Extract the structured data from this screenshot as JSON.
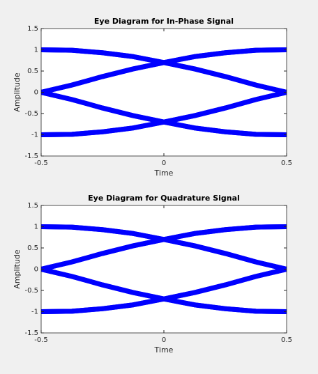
{
  "chart_data": [
    {
      "type": "line",
      "title": "Eye Diagram for In-Phase Signal",
      "x_label": "Time",
      "y_label": "Amplitude",
      "xlim": [
        -0.5,
        0.5
      ],
      "ylim": [
        -1.5,
        1.5
      ],
      "xticks": [
        -0.5,
        0,
        0.5
      ],
      "yticks": [
        -1.5,
        -1,
        -0.5,
        0,
        0.5,
        1,
        1.5
      ],
      "grid": false,
      "x": [
        -0.5,
        -0.375,
        -0.25,
        -0.125,
        0,
        0.125,
        0.25,
        0.375,
        0.5
      ],
      "series": [
        {
          "color": "#0000ff",
          "values": [
            1,
            0.99,
            0.93,
            0.84,
            0.7,
            0.84,
            0.93,
            0.99,
            1
          ]
        },
        {
          "color": "#0000ff",
          "values": [
            1,
            0.99,
            0.93,
            0.84,
            0.7,
            0.55,
            0.37,
            0.17,
            0
          ]
        },
        {
          "color": "#0000ff",
          "values": [
            0,
            0.17,
            0.37,
            0.55,
            0.7,
            0.84,
            0.93,
            0.99,
            1
          ]
        },
        {
          "color": "#0000ff",
          "values": [
            0,
            0.17,
            0.37,
            0.55,
            0.7,
            0.55,
            0.37,
            0.17,
            0
          ]
        },
        {
          "color": "#0000ff",
          "values": [
            -1,
            -0.99,
            -0.93,
            -0.84,
            -0.7,
            -0.84,
            -0.93,
            -0.99,
            -1
          ]
        },
        {
          "color": "#0000ff",
          "values": [
            -1,
            -0.99,
            -0.93,
            -0.84,
            -0.7,
            -0.55,
            -0.37,
            -0.17,
            0
          ]
        },
        {
          "color": "#0000ff",
          "values": [
            0,
            -0.17,
            -0.37,
            -0.55,
            -0.7,
            -0.84,
            -0.93,
            -0.99,
            -1
          ]
        },
        {
          "color": "#0000ff",
          "values": [
            0,
            -0.17,
            -0.37,
            -0.55,
            -0.7,
            -0.55,
            -0.37,
            -0.17,
            0
          ]
        }
      ]
    },
    {
      "type": "line",
      "title": "Eye Diagram for Quadrature Signal",
      "x_label": "Time",
      "y_label": "Amplitude",
      "xlim": [
        -0.5,
        0.5
      ],
      "ylim": [
        -1.5,
        1.5
      ],
      "xticks": [
        -0.5,
        0,
        0.5
      ],
      "yticks": [
        -1.5,
        -1,
        -0.5,
        0,
        0.5,
        1,
        1.5
      ],
      "grid": false,
      "x": [
        -0.5,
        -0.375,
        -0.25,
        -0.125,
        0,
        0.125,
        0.25,
        0.375,
        0.5
      ],
      "series": [
        {
          "color": "#0000ff",
          "values": [
            1,
            0.99,
            0.93,
            0.84,
            0.7,
            0.84,
            0.93,
            0.99,
            1
          ]
        },
        {
          "color": "#0000ff",
          "values": [
            1,
            0.99,
            0.93,
            0.84,
            0.7,
            0.55,
            0.37,
            0.17,
            0
          ]
        },
        {
          "color": "#0000ff",
          "values": [
            0,
            0.17,
            0.37,
            0.55,
            0.7,
            0.84,
            0.93,
            0.99,
            1
          ]
        },
        {
          "color": "#0000ff",
          "values": [
            0,
            0.17,
            0.37,
            0.55,
            0.7,
            0.55,
            0.37,
            0.17,
            0
          ]
        },
        {
          "color": "#0000ff",
          "values": [
            -1,
            -0.99,
            -0.93,
            -0.84,
            -0.7,
            -0.84,
            -0.93,
            -0.99,
            -1
          ]
        },
        {
          "color": "#0000ff",
          "values": [
            -1,
            -0.99,
            -0.93,
            -0.84,
            -0.7,
            -0.55,
            -0.37,
            -0.17,
            0
          ]
        },
        {
          "color": "#0000ff",
          "values": [
            0,
            -0.17,
            -0.37,
            -0.55,
            -0.7,
            -0.84,
            -0.93,
            -0.99,
            -1
          ]
        },
        {
          "color": "#0000ff",
          "values": [
            0,
            -0.17,
            -0.37,
            -0.55,
            -0.7,
            -0.55,
            -0.37,
            -0.17,
            0
          ]
        }
      ]
    }
  ]
}
